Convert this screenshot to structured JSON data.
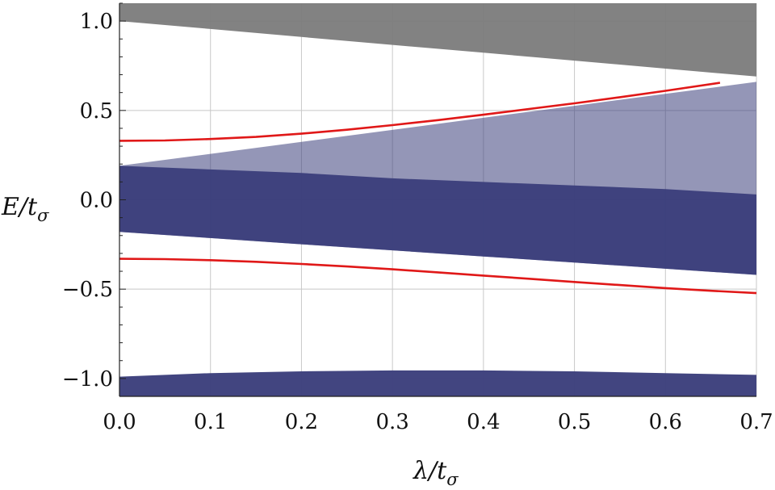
{
  "chart_data": {
    "type": "area",
    "xlabel": "λ/t",
    "xlabel_sub": "σ",
    "ylabel": "E/t",
    "ylabel_sub": "σ",
    "xlim": [
      0.0,
      0.7
    ],
    "ylim": [
      -1.1,
      1.1
    ],
    "grid": true,
    "x_ticks": [
      0.0,
      0.1,
      0.2,
      0.3,
      0.4,
      0.5,
      0.6,
      0.7
    ],
    "x_tick_labels": [
      "0.0",
      "0.1",
      "0.2",
      "0.3",
      "0.4",
      "0.5",
      "0.6",
      "0.7"
    ],
    "y_ticks": [
      1.0,
      0.5,
      0.0,
      -0.5,
      -1.0
    ],
    "y_tick_labels": [
      "1.0",
      "0.5",
      "0.0",
      "−0.5",
      "−1.0"
    ],
    "band_colors": {
      "upper_band": "#7b7b7b",
      "bulk_band": "#3c3f7c",
      "edge_state": "#e01818"
    },
    "bands": [
      {
        "role": "upper_band",
        "color": "#7b7b7b",
        "x": [
          0.0,
          0.1,
          0.2,
          0.3,
          0.4,
          0.5,
          0.6,
          0.7
        ],
        "lower": [
          1.0,
          0.956,
          0.911,
          0.867,
          0.823,
          0.779,
          0.734,
          0.69
        ],
        "upper": [
          1.1,
          1.1,
          1.1,
          1.1,
          1.1,
          1.1,
          1.1,
          1.1
        ]
      },
      {
        "role": "bulk_band_middle",
        "color": "#3c3f7c",
        "x": [
          0.0,
          0.1,
          0.2,
          0.3,
          0.4,
          0.5,
          0.6,
          0.7
        ],
        "lower": [
          -0.18,
          -0.214,
          -0.249,
          -0.283,
          -0.317,
          -0.351,
          -0.386,
          -0.42
        ],
        "upper": [
          0.19,
          0.257,
          0.324,
          0.391,
          0.459,
          0.526,
          0.593,
          0.66
        ]
      },
      {
        "role": "bulk_band_dense_core",
        "color": "#3c3f7c",
        "x": [
          0.0,
          0.1,
          0.2,
          0.3,
          0.4,
          0.5,
          0.6,
          0.7
        ],
        "lower": [
          -0.18,
          -0.214,
          -0.249,
          -0.283,
          -0.317,
          -0.351,
          -0.386,
          -0.42
        ],
        "upper": [
          0.19,
          0.17,
          0.15,
          0.12,
          0.1,
          0.08,
          0.06,
          0.03
        ]
      },
      {
        "role": "bulk_band_bottom",
        "color": "#3c3f7c",
        "x": [
          0.0,
          0.1,
          0.2,
          0.3,
          0.4,
          0.5,
          0.6,
          0.7
        ],
        "lower": [
          -1.1,
          -1.1,
          -1.1,
          -1.1,
          -1.1,
          -1.1,
          -1.1,
          -1.1
        ],
        "upper": [
          -0.99,
          -0.97,
          -0.96,
          -0.955,
          -0.955,
          -0.96,
          -0.97,
          -0.98
        ]
      }
    ],
    "series": [
      {
        "role": "edge_state_upper",
        "color": "#e01818",
        "x": [
          0.0,
          0.05,
          0.1,
          0.15,
          0.2,
          0.25,
          0.3,
          0.35,
          0.4,
          0.45,
          0.5,
          0.55,
          0.6,
          0.66
        ],
        "values": [
          0.33,
          0.332,
          0.34,
          0.352,
          0.37,
          0.392,
          0.418,
          0.446,
          0.476,
          0.508,
          0.54,
          0.574,
          0.61,
          0.655
        ]
      },
      {
        "role": "edge_state_lower",
        "color": "#e01818",
        "x": [
          0.0,
          0.05,
          0.1,
          0.15,
          0.2,
          0.25,
          0.3,
          0.35,
          0.4,
          0.45,
          0.5,
          0.55,
          0.6,
          0.65,
          0.7
        ],
        "values": [
          -0.33,
          -0.332,
          -0.338,
          -0.347,
          -0.359,
          -0.373,
          -0.389,
          -0.406,
          -0.424,
          -0.442,
          -0.46,
          -0.477,
          -0.494,
          -0.509,
          -0.522
        ]
      }
    ]
  }
}
